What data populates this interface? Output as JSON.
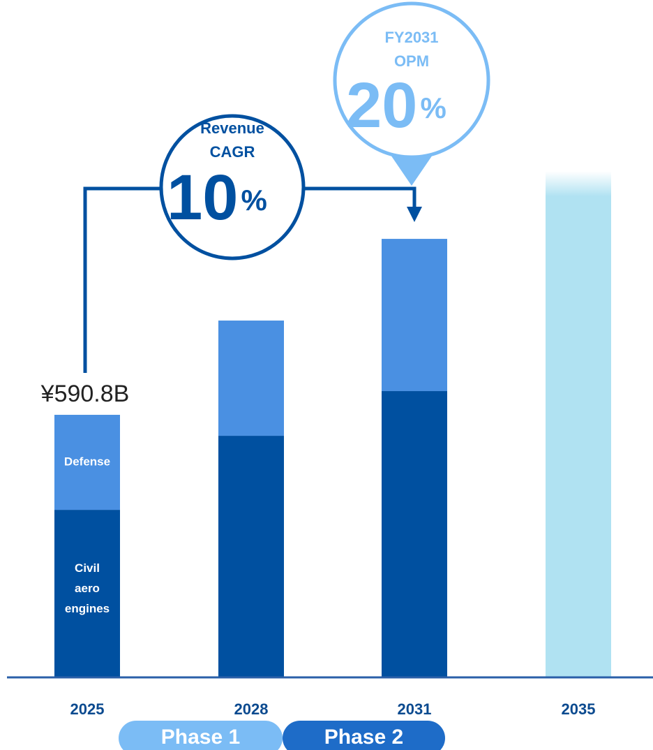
{
  "chart_data": {
    "type": "bar",
    "categories": [
      "2025",
      "2028",
      "2031",
      "2035"
    ],
    "series": [
      {
        "name": "Civil aero engines",
        "color": "#0050a0",
        "values": [
          377,
          543.6,
          644.2,
          null
        ]
      },
      {
        "name": "Defense",
        "color": "#4a90e2",
        "values": [
          213.8,
          259.3,
          342.5,
          null
        ]
      },
      {
        "color": "#b0e2f2",
        "values": [
          null,
          null,
          null,
          1139
        ]
      }
    ],
    "ylim": [
      0,
      1200
    ],
    "annotations": [
      {
        "text": "¥590.8B",
        "value": 590.8
      }
    ],
    "callouts": [
      {
        "lines": [
          "Revenue",
          "CAGR"
        ],
        "value": 10,
        "unit": "%",
        "color": "#0050a0"
      },
      {
        "lines": [
          "FY2031",
          "OPM"
        ],
        "value": 20,
        "unit": "%",
        "color": "#7bbcf5"
      }
    ],
    "phases": [
      {
        "label": "Phase 1",
        "color": "#7bbcf5"
      },
      {
        "label": "Phase 2",
        "color": "#1e6cc8"
      }
    ]
  }
}
